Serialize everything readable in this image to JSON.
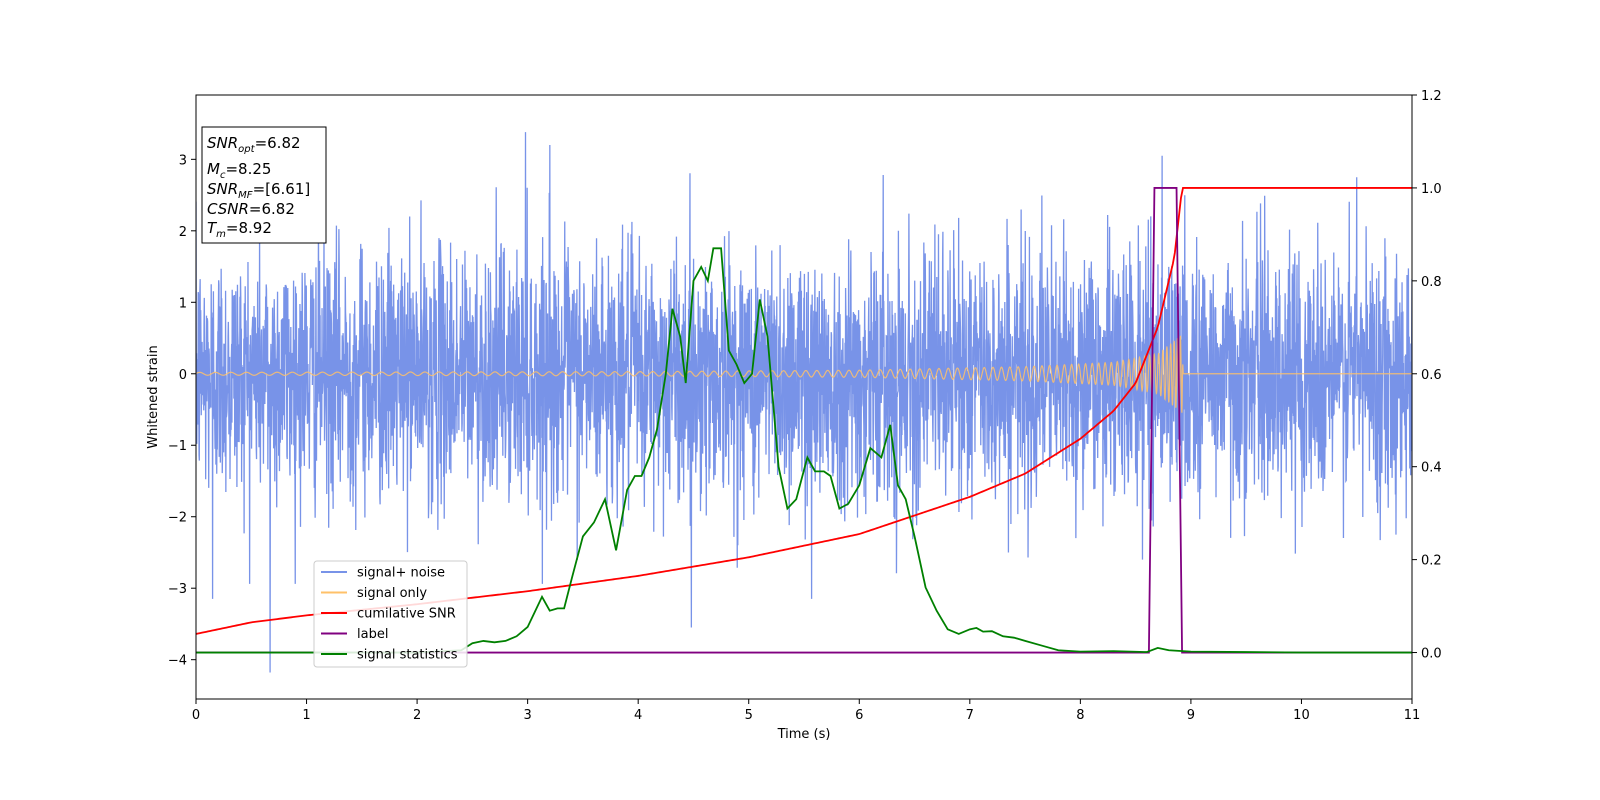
{
  "chart_data": {
    "type": "line",
    "xlabel": "Time (s)",
    "ylabel": "Whitened strain",
    "xlim": [
      0,
      11
    ],
    "ylim": [
      -4.55,
      3.9
    ],
    "y2lim": [
      -0.1,
      1.2
    ],
    "xticks": [
      0,
      1,
      2,
      3,
      4,
      5,
      6,
      7,
      8,
      9,
      10,
      11
    ],
    "yticks": [
      -4,
      -3,
      -2,
      -1,
      0,
      1,
      2,
      3
    ],
    "y2ticks": [
      0.0,
      0.2,
      0.4,
      0.6,
      0.8,
      1.0,
      1.2
    ],
    "grid": false,
    "legend_placement": "lower-left",
    "infobox": {
      "snr_opt": {
        "label": "SNR",
        "sub": "opt",
        "value": "=6.82"
      },
      "mc": {
        "label": "M",
        "sub": "c",
        "value": "=8.25"
      },
      "snr_mf": {
        "label": "SNR",
        "sub": "MF",
        "value": "=[6.61]"
      },
      "csnr": {
        "label": "CSNR",
        "value": "=6.82"
      },
      "tm": {
        "label": "T",
        "sub": "m",
        "value": "=8.92"
      }
    },
    "series": [
      {
        "name": "signal+ noise",
        "axis": "left",
        "color": "#7893e8",
        "noise_envelope": {
          "typical": 1.4,
          "max": 3.3,
          "min": -4.2
        },
        "peaks": [
          [
            0.67,
            -4.18
          ],
          [
            2.98,
            3.38
          ],
          [
            3.2,
            3.2
          ],
          [
            8.74,
            3.05
          ],
          [
            10.5,
            2.75
          ],
          [
            4.48,
            -3.55
          ],
          [
            5.57,
            -3.15
          ],
          [
            0.15,
            -3.15
          ]
        ]
      },
      {
        "name": "signal only",
        "axis": "left",
        "color": "#ffc169",
        "chirp_amplitude": [
          [
            0.0,
            0.02
          ],
          [
            4.0,
            0.03
          ],
          [
            6.0,
            0.05
          ],
          [
            7.5,
            0.1
          ],
          [
            8.3,
            0.16
          ],
          [
            8.7,
            0.28
          ],
          [
            8.92,
            0.55
          ],
          [
            8.93,
            0.0
          ],
          [
            11.0,
            0.0
          ]
        ]
      },
      {
        "name": "cumilative SNR",
        "axis": "right",
        "color": "#ff0000",
        "x": [
          0.0,
          0.5,
          1.0,
          2.0,
          3.0,
          4.0,
          5.0,
          6.0,
          7.0,
          7.5,
          8.0,
          8.3,
          8.5,
          8.7,
          8.85,
          8.92,
          9.0,
          10.0,
          11.0
        ],
        "y": [
          0.04,
          0.065,
          0.08,
          0.104,
          0.132,
          0.165,
          0.205,
          0.255,
          0.335,
          0.385,
          0.46,
          0.52,
          0.58,
          0.7,
          0.85,
          1.0,
          1.0,
          1.0,
          1.0
        ]
      },
      {
        "name": "label",
        "axis": "right",
        "color": "#800080",
        "x": [
          0.0,
          8.62,
          8.67,
          8.87,
          8.92,
          11.0
        ],
        "y": [
          0.0,
          0.0,
          1.0,
          1.0,
          0.0,
          0.0
        ]
      },
      {
        "name": "signal statistics",
        "axis": "right",
        "color": "#008000",
        "x": [
          0.0,
          1.0,
          2.0,
          2.4,
          2.5,
          2.6,
          2.7,
          2.8,
          2.9,
          3.0,
          3.07,
          3.13,
          3.2,
          3.27,
          3.33,
          3.4,
          3.5,
          3.6,
          3.7,
          3.8,
          3.9,
          3.97,
          4.03,
          4.1,
          4.17,
          4.25,
          4.31,
          4.38,
          4.43,
          4.5,
          4.57,
          4.63,
          4.68,
          4.75,
          4.82,
          4.89,
          4.96,
          5.03,
          5.1,
          5.17,
          5.27,
          5.35,
          5.43,
          5.53,
          5.6,
          5.68,
          5.74,
          5.82,
          5.9,
          6.0,
          6.1,
          6.2,
          6.28,
          6.35,
          6.42,
          6.5,
          6.6,
          6.7,
          6.8,
          6.9,
          7.0,
          7.06,
          7.12,
          7.2,
          7.3,
          7.4,
          7.5,
          7.65,
          7.8,
          8.0,
          8.3,
          8.6,
          8.7,
          8.8,
          9.0,
          9.5,
          10.0,
          11.0
        ],
        "y": [
          0.0,
          0.0,
          0.0,
          0.005,
          0.02,
          0.025,
          0.022,
          0.025,
          0.035,
          0.055,
          0.09,
          0.12,
          0.09,
          0.095,
          0.095,
          0.16,
          0.25,
          0.28,
          0.33,
          0.22,
          0.35,
          0.38,
          0.38,
          0.42,
          0.48,
          0.6,
          0.74,
          0.68,
          0.58,
          0.8,
          0.83,
          0.8,
          0.87,
          0.87,
          0.65,
          0.62,
          0.58,
          0.6,
          0.76,
          0.68,
          0.4,
          0.31,
          0.33,
          0.42,
          0.39,
          0.39,
          0.38,
          0.31,
          0.32,
          0.36,
          0.44,
          0.42,
          0.49,
          0.36,
          0.33,
          0.25,
          0.14,
          0.09,
          0.05,
          0.04,
          0.05,
          0.053,
          0.045,
          0.046,
          0.035,
          0.032,
          0.025,
          0.015,
          0.005,
          0.002,
          0.003,
          0.001,
          0.01,
          0.005,
          0.002,
          0.001,
          0.0,
          0.0
        ]
      }
    ]
  }
}
